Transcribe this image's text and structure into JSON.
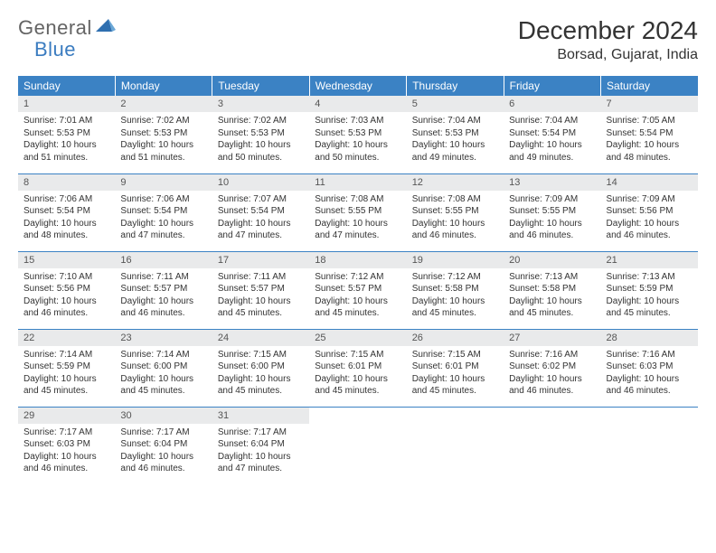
{
  "logo": {
    "general": "General",
    "blue": "Blue"
  },
  "title": "December 2024",
  "location": "Borsad, Gujarat, India",
  "colors": {
    "header_bg": "#3b82c4",
    "header_text": "#ffffff",
    "daynum_bg": "#e9eaeb",
    "border": "#3b82c4",
    "logo_gray": "#646464",
    "logo_blue": "#3b7cc0"
  },
  "weekdays": [
    "Sunday",
    "Monday",
    "Tuesday",
    "Wednesday",
    "Thursday",
    "Friday",
    "Saturday"
  ],
  "days": [
    {
      "n": "1",
      "sunrise": "Sunrise: 7:01 AM",
      "sunset": "Sunset: 5:53 PM",
      "day1": "Daylight: 10 hours",
      "day2": "and 51 minutes."
    },
    {
      "n": "2",
      "sunrise": "Sunrise: 7:02 AM",
      "sunset": "Sunset: 5:53 PM",
      "day1": "Daylight: 10 hours",
      "day2": "and 51 minutes."
    },
    {
      "n": "3",
      "sunrise": "Sunrise: 7:02 AM",
      "sunset": "Sunset: 5:53 PM",
      "day1": "Daylight: 10 hours",
      "day2": "and 50 minutes."
    },
    {
      "n": "4",
      "sunrise": "Sunrise: 7:03 AM",
      "sunset": "Sunset: 5:53 PM",
      "day1": "Daylight: 10 hours",
      "day2": "and 50 minutes."
    },
    {
      "n": "5",
      "sunrise": "Sunrise: 7:04 AM",
      "sunset": "Sunset: 5:53 PM",
      "day1": "Daylight: 10 hours",
      "day2": "and 49 minutes."
    },
    {
      "n": "6",
      "sunrise": "Sunrise: 7:04 AM",
      "sunset": "Sunset: 5:54 PM",
      "day1": "Daylight: 10 hours",
      "day2": "and 49 minutes."
    },
    {
      "n": "7",
      "sunrise": "Sunrise: 7:05 AM",
      "sunset": "Sunset: 5:54 PM",
      "day1": "Daylight: 10 hours",
      "day2": "and 48 minutes."
    },
    {
      "n": "8",
      "sunrise": "Sunrise: 7:06 AM",
      "sunset": "Sunset: 5:54 PM",
      "day1": "Daylight: 10 hours",
      "day2": "and 48 minutes."
    },
    {
      "n": "9",
      "sunrise": "Sunrise: 7:06 AM",
      "sunset": "Sunset: 5:54 PM",
      "day1": "Daylight: 10 hours",
      "day2": "and 47 minutes."
    },
    {
      "n": "10",
      "sunrise": "Sunrise: 7:07 AM",
      "sunset": "Sunset: 5:54 PM",
      "day1": "Daylight: 10 hours",
      "day2": "and 47 minutes."
    },
    {
      "n": "11",
      "sunrise": "Sunrise: 7:08 AM",
      "sunset": "Sunset: 5:55 PM",
      "day1": "Daylight: 10 hours",
      "day2": "and 47 minutes."
    },
    {
      "n": "12",
      "sunrise": "Sunrise: 7:08 AM",
      "sunset": "Sunset: 5:55 PM",
      "day1": "Daylight: 10 hours",
      "day2": "and 46 minutes."
    },
    {
      "n": "13",
      "sunrise": "Sunrise: 7:09 AM",
      "sunset": "Sunset: 5:55 PM",
      "day1": "Daylight: 10 hours",
      "day2": "and 46 minutes."
    },
    {
      "n": "14",
      "sunrise": "Sunrise: 7:09 AM",
      "sunset": "Sunset: 5:56 PM",
      "day1": "Daylight: 10 hours",
      "day2": "and 46 minutes."
    },
    {
      "n": "15",
      "sunrise": "Sunrise: 7:10 AM",
      "sunset": "Sunset: 5:56 PM",
      "day1": "Daylight: 10 hours",
      "day2": "and 46 minutes."
    },
    {
      "n": "16",
      "sunrise": "Sunrise: 7:11 AM",
      "sunset": "Sunset: 5:57 PM",
      "day1": "Daylight: 10 hours",
      "day2": "and 46 minutes."
    },
    {
      "n": "17",
      "sunrise": "Sunrise: 7:11 AM",
      "sunset": "Sunset: 5:57 PM",
      "day1": "Daylight: 10 hours",
      "day2": "and 45 minutes."
    },
    {
      "n": "18",
      "sunrise": "Sunrise: 7:12 AM",
      "sunset": "Sunset: 5:57 PM",
      "day1": "Daylight: 10 hours",
      "day2": "and 45 minutes."
    },
    {
      "n": "19",
      "sunrise": "Sunrise: 7:12 AM",
      "sunset": "Sunset: 5:58 PM",
      "day1": "Daylight: 10 hours",
      "day2": "and 45 minutes."
    },
    {
      "n": "20",
      "sunrise": "Sunrise: 7:13 AM",
      "sunset": "Sunset: 5:58 PM",
      "day1": "Daylight: 10 hours",
      "day2": "and 45 minutes."
    },
    {
      "n": "21",
      "sunrise": "Sunrise: 7:13 AM",
      "sunset": "Sunset: 5:59 PM",
      "day1": "Daylight: 10 hours",
      "day2": "and 45 minutes."
    },
    {
      "n": "22",
      "sunrise": "Sunrise: 7:14 AM",
      "sunset": "Sunset: 5:59 PM",
      "day1": "Daylight: 10 hours",
      "day2": "and 45 minutes."
    },
    {
      "n": "23",
      "sunrise": "Sunrise: 7:14 AM",
      "sunset": "Sunset: 6:00 PM",
      "day1": "Daylight: 10 hours",
      "day2": "and 45 minutes."
    },
    {
      "n": "24",
      "sunrise": "Sunrise: 7:15 AM",
      "sunset": "Sunset: 6:00 PM",
      "day1": "Daylight: 10 hours",
      "day2": "and 45 minutes."
    },
    {
      "n": "25",
      "sunrise": "Sunrise: 7:15 AM",
      "sunset": "Sunset: 6:01 PM",
      "day1": "Daylight: 10 hours",
      "day2": "and 45 minutes."
    },
    {
      "n": "26",
      "sunrise": "Sunrise: 7:15 AM",
      "sunset": "Sunset: 6:01 PM",
      "day1": "Daylight: 10 hours",
      "day2": "and 45 minutes."
    },
    {
      "n": "27",
      "sunrise": "Sunrise: 7:16 AM",
      "sunset": "Sunset: 6:02 PM",
      "day1": "Daylight: 10 hours",
      "day2": "and 46 minutes."
    },
    {
      "n": "28",
      "sunrise": "Sunrise: 7:16 AM",
      "sunset": "Sunset: 6:03 PM",
      "day1": "Daylight: 10 hours",
      "day2": "and 46 minutes."
    },
    {
      "n": "29",
      "sunrise": "Sunrise: 7:17 AM",
      "sunset": "Sunset: 6:03 PM",
      "day1": "Daylight: 10 hours",
      "day2": "and 46 minutes."
    },
    {
      "n": "30",
      "sunrise": "Sunrise: 7:17 AM",
      "sunset": "Sunset: 6:04 PM",
      "day1": "Daylight: 10 hours",
      "day2": "and 46 minutes."
    },
    {
      "n": "31",
      "sunrise": "Sunrise: 7:17 AM",
      "sunset": "Sunset: 6:04 PM",
      "day1": "Daylight: 10 hours",
      "day2": "and 47 minutes."
    }
  ]
}
